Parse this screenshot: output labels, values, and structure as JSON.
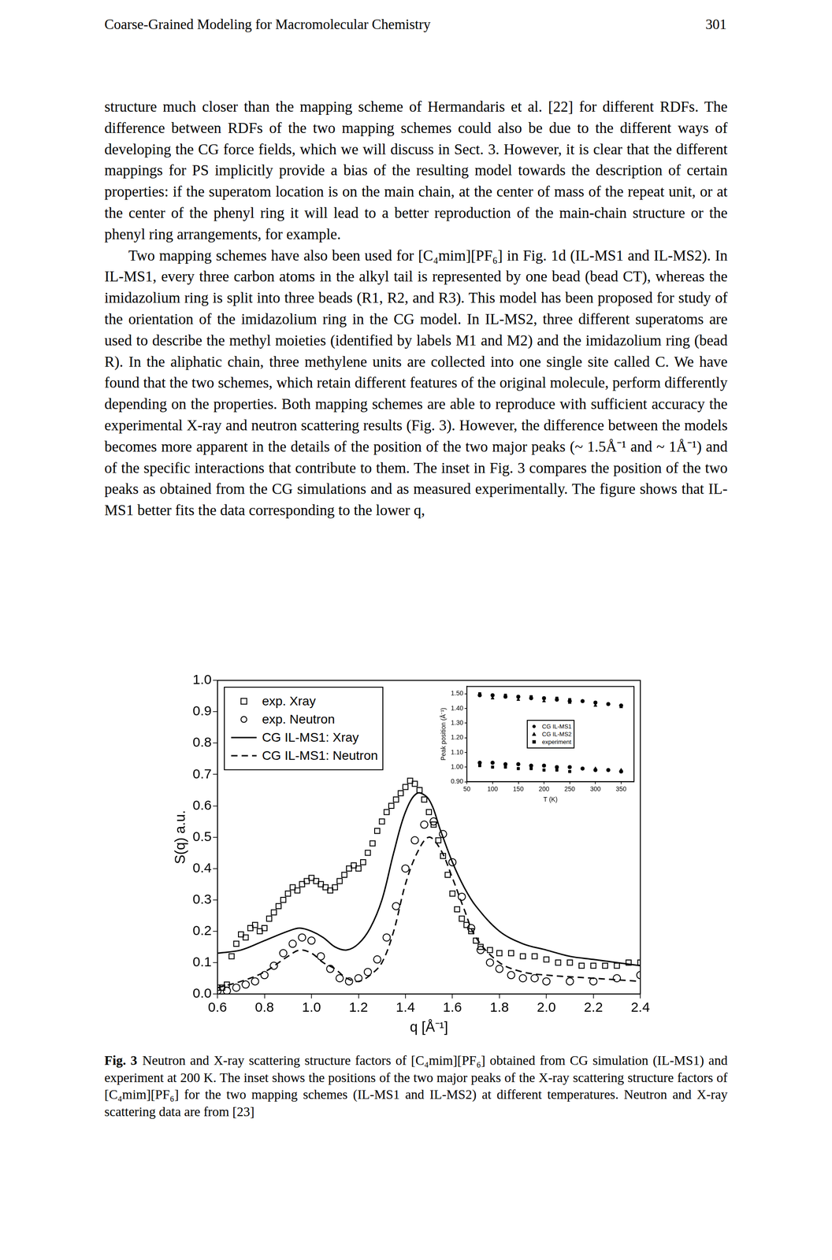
{
  "header": {
    "title": "Coarse-Grained Modeling for Macromolecular Chemistry",
    "page": "301"
  },
  "paragraphs": [
    "structure much closer than the mapping scheme of Hermandaris et al. [22] for different RDFs. The difference between RDFs of the two mapping schemes could also be due to the different ways of developing the CG force fields, which we will discuss in Sect. 3. However, it is clear that the different mappings for PS implicitly provide a bias of the resulting model towards the description of certain properties: if the superatom location is on the main chain, at the center of mass of the repeat unit, or at the center of the phenyl ring it will lead to a better reproduction of the main-chain structure or the phenyl ring arrangements, for example.",
    "Two mapping schemes have also been used for [C₄mim][PF₆] in Fig. 1d (IL-MS1 and IL-MS2). In IL-MS1, every three carbon atoms in the alkyl tail is represented by one bead (bead CT), whereas the imidazolium ring is split into three beads (R1, R2, and R3). This model has been proposed for study of the orientation of the imidazolium ring in the CG model. In IL-MS2, three different superatoms are used to describe the methyl moieties (identified by labels M1 and M2) and the imidazolium ring (bead R). In the aliphatic chain, three methylene units are collected into one single site called C. We have found that the two schemes, which retain different features of the original molecule, perform differently depending on the properties. Both mapping schemes are able to reproduce with sufficient accuracy the experimental X-ray and neutron scattering results (Fig. 3). However, the difference between the models becomes more apparent in the details of the position of the two major peaks (~ 1.5Å⁻¹ and ~ 1Å⁻¹) and of the specific interactions that contribute to them. The inset in Fig. 3 compares the position of the two peaks as obtained from the CG simulations and as measured experimentally. The figure shows that IL-MS1 better fits the data corresponding to the lower q,"
  ],
  "chart_data": [
    {
      "type": "scatter",
      "xlabel": "q [Å⁻¹]",
      "ylabel": "S(q) a.u.",
      "xlim": [
        0.6,
        2.4
      ],
      "ylim": [
        0,
        1
      ],
      "xticks": [
        0.6,
        0.8,
        {
          "value": 1,
          "label": "1.0"
        },
        1.2,
        1.4,
        1.6,
        1.8,
        {
          "value": 2,
          "label": "2.0"
        },
        2.2,
        2.4
      ],
      "yticks": [
        {
          "value": 0,
          "label": "0.0"
        },
        0.1,
        0.2,
        0.3,
        0.4,
        0.5,
        0.6,
        0.7,
        0.8,
        0.9,
        {
          "value": 1,
          "label": "1.0"
        }
      ],
      "grid": false,
      "legend": "upper left",
      "series": [
        {
          "name": "exp. Xray",
          "type": "scatter",
          "marker": "open square",
          "color": "#000000",
          "x": [
            0.6,
            0.62,
            0.64,
            0.66,
            0.68,
            0.7,
            0.72,
            0.74,
            0.76,
            0.78,
            0.8,
            0.82,
            0.84,
            0.86,
            0.88,
            0.9,
            0.92,
            0.94,
            0.96,
            0.98,
            1.0,
            1.02,
            1.04,
            1.06,
            1.08,
            1.1,
            1.12,
            1.14,
            1.16,
            1.18,
            1.2,
            1.22,
            1.24,
            1.26,
            1.28,
            1.3,
            1.32,
            1.34,
            1.36,
            1.38,
            1.4,
            1.42,
            1.44,
            1.46,
            1.48,
            1.5,
            1.52,
            1.54,
            1.56,
            1.58,
            1.6,
            1.62,
            1.64,
            1.66,
            1.68,
            1.7,
            1.72,
            1.76,
            1.8,
            1.85,
            1.9,
            1.95,
            2.0,
            2.05,
            2.1,
            2.15,
            2.2,
            2.25,
            2.3,
            2.35,
            2.4
          ],
          "values": [
            0.02,
            0.02,
            0.03,
            0.12,
            0.16,
            0.19,
            0.18,
            0.21,
            0.22,
            0.2,
            0.21,
            0.24,
            0.26,
            0.28,
            0.3,
            0.32,
            0.34,
            0.33,
            0.35,
            0.36,
            0.37,
            0.36,
            0.35,
            0.34,
            0.33,
            0.34,
            0.36,
            0.38,
            0.4,
            0.41,
            0.4,
            0.42,
            0.45,
            0.48,
            0.52,
            0.55,
            0.58,
            0.6,
            0.62,
            0.64,
            0.66,
            0.68,
            0.67,
            0.65,
            0.62,
            0.58,
            0.54,
            0.49,
            0.44,
            0.38,
            0.32,
            0.27,
            0.24,
            0.22,
            0.2,
            0.17,
            0.15,
            0.14,
            0.13,
            0.13,
            0.12,
            0.12,
            0.11,
            0.1,
            0.1,
            0.09,
            0.09,
            0.09,
            0.09,
            0.1,
            0.1
          ]
        },
        {
          "name": "exp. Neutron",
          "type": "scatter",
          "marker": "open circle",
          "color": "#000000",
          "x": [
            0.6,
            0.64,
            0.68,
            0.72,
            0.76,
            0.8,
            0.84,
            0.88,
            0.92,
            0.96,
            1.0,
            1.04,
            1.08,
            1.12,
            1.16,
            1.2,
            1.24,
            1.28,
            1.32,
            1.36,
            1.4,
            1.44,
            1.48,
            1.52,
            1.56,
            1.6,
            1.64,
            1.68,
            1.72,
            1.76,
            1.8,
            1.85,
            1.9,
            1.95,
            2.0,
            2.1,
            2.2,
            2.3,
            2.4
          ],
          "values": [
            0.01,
            0.01,
            0.02,
            0.03,
            0.04,
            0.06,
            0.09,
            0.13,
            0.16,
            0.18,
            0.17,
            0.12,
            0.08,
            0.05,
            0.04,
            0.05,
            0.07,
            0.11,
            0.18,
            0.28,
            0.4,
            0.49,
            0.54,
            0.55,
            0.51,
            0.42,
            0.31,
            0.21,
            0.14,
            0.1,
            0.08,
            0.06,
            0.05,
            0.05,
            0.04,
            0.04,
            0.04,
            0.05,
            0.06
          ]
        },
        {
          "name": "CG IL-MS1: Xray",
          "type": "line",
          "marker": "none",
          "line_style": "solid",
          "color": "#000000",
          "x": [
            0.6,
            0.7,
            0.8,
            0.9,
            0.95,
            1.0,
            1.05,
            1.1,
            1.15,
            1.2,
            1.25,
            1.3,
            1.35,
            1.4,
            1.45,
            1.5,
            1.55,
            1.6,
            1.65,
            1.7,
            1.8,
            1.9,
            2.0,
            2.1,
            2.2,
            2.3,
            2.4
          ],
          "values": [
            0.13,
            0.14,
            0.17,
            0.2,
            0.21,
            0.2,
            0.18,
            0.15,
            0.14,
            0.16,
            0.21,
            0.3,
            0.45,
            0.58,
            0.64,
            0.62,
            0.52,
            0.42,
            0.34,
            0.28,
            0.2,
            0.16,
            0.14,
            0.12,
            0.11,
            0.1,
            0.09
          ]
        },
        {
          "name": "CG IL-MS1: Neutron",
          "type": "line",
          "marker": "none",
          "line_style": "dashed",
          "color": "#000000",
          "x": [
            0.6,
            0.7,
            0.8,
            0.9,
            0.95,
            1.0,
            1.05,
            1.1,
            1.15,
            1.2,
            1.25,
            1.3,
            1.35,
            1.4,
            1.45,
            1.5,
            1.55,
            1.6,
            1.65,
            1.7,
            1.8,
            1.9,
            2.0,
            2.2,
            2.4
          ],
          "values": [
            0.02,
            0.04,
            0.07,
            0.12,
            0.14,
            0.13,
            0.1,
            0.08,
            0.05,
            0.04,
            0.06,
            0.1,
            0.2,
            0.35,
            0.45,
            0.5,
            0.46,
            0.37,
            0.27,
            0.18,
            0.1,
            0.07,
            0.06,
            0.05,
            0.04
          ]
        }
      ]
    },
    {
      "type": "scatter",
      "xlabel": "T (K)",
      "ylabel": "Peak position (Å⁻¹)",
      "xlim": [
        50,
        375
      ],
      "ylim": [
        0.9,
        1.55
      ],
      "xticks": [
        50,
        100,
        150,
        200,
        250,
        300,
        350
      ],
      "yticks": [
        {
          "value": 0.9,
          "label": "0.90"
        },
        {
          "value": 1,
          "label": "1.00"
        },
        {
          "value": 1.1,
          "label": "1.10"
        },
        {
          "value": 1.2,
          "label": "1.20"
        },
        {
          "value": 1.3,
          "label": "1.30"
        },
        {
          "value": 1.4,
          "label": "1.40"
        },
        {
          "value": 1.5,
          "label": "1.50"
        }
      ],
      "grid": false,
      "legend": "center",
      "series": [
        {
          "name": "CG IL-MS1",
          "type": "scatter",
          "marker": "circle",
          "color": "#000000",
          "x": [
            75,
            100,
            125,
            150,
            175,
            200,
            225,
            250,
            275,
            300,
            325,
            350,
            75,
            100,
            125,
            150,
            175,
            200,
            225,
            250,
            275,
            300,
            325,
            350
          ],
          "values": [
            1.49,
            1.49,
            1.48,
            1.48,
            1.47,
            1.47,
            1.46,
            1.45,
            1.45,
            1.44,
            1.43,
            1.42,
            1.03,
            1.03,
            1.02,
            1.02,
            1.01,
            1.01,
            1.0,
            1.0,
            0.99,
            0.98,
            0.98,
            0.97
          ]
        },
        {
          "name": "CG IL-MS2",
          "type": "scatter",
          "marker": "triangle",
          "color": "#000000",
          "x": [
            100,
            150,
            200,
            250,
            300,
            350,
            100,
            150,
            200,
            250,
            300,
            350
          ],
          "values": [
            1.47,
            1.46,
            1.45,
            1.44,
            1.42,
            1.41,
            1.03,
            1.02,
            1.01,
            1.0,
            0.99,
            0.98
          ]
        },
        {
          "name": "experiment",
          "type": "scatter",
          "marker": "square",
          "color": "#000000",
          "x": [
            75,
            100,
            125,
            150,
            175,
            200,
            225,
            250,
            75,
            100,
            125,
            150,
            175,
            200,
            225,
            250
          ],
          "values": [
            1.5,
            1.49,
            1.49,
            1.48,
            1.48,
            1.47,
            1.47,
            1.46,
            1.01,
            1.0,
            1.0,
            0.99,
            0.99,
            0.98,
            0.98,
            0.97
          ]
        }
      ]
    }
  ],
  "caption": {
    "label": "Fig. 3",
    "text": "Neutron and X-ray scattering structure factors of [C₄mim][PF₆] obtained from CG simulation (IL-MS1) and experiment at 200 K. The inset shows the positions of the two major peaks of the X-ray scattering structure factors of [C₄mim][PF₆] for the two mapping schemes (IL-MS1 and IL-MS2) at different temperatures. Neutron and X-ray scattering data are from [23]"
  }
}
